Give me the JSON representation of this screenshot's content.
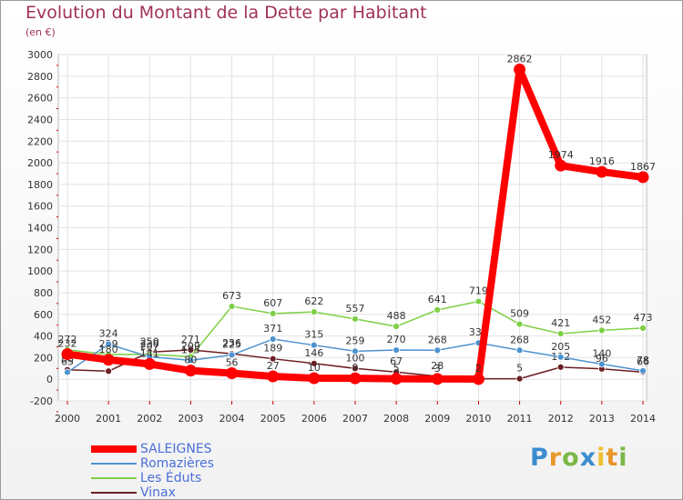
{
  "chart_data": {
    "type": "line",
    "title": "Evolution du Montant de la Dette par Habitant",
    "subtitle": "(en €)",
    "x": [
      "2000",
      "2001",
      "2002",
      "2003",
      "2004",
      "2005",
      "2006",
      "2007",
      "2008",
      "2009",
      "2010",
      "2011",
      "2012",
      "2013",
      "2014"
    ],
    "ylim": [
      -200,
      3000
    ],
    "yticks": [
      -200,
      0,
      200,
      400,
      600,
      800,
      1000,
      1200,
      1400,
      1600,
      1800,
      2000,
      2200,
      2400,
      2600,
      2800,
      3000
    ],
    "grid": true,
    "series": [
      {
        "name": "SALEIGNES",
        "color": "#ff0000",
        "values": [
          232,
          180,
          141,
          80,
          56,
          27,
          10,
          9,
          5,
          3,
          2,
          2862,
          1974,
          1916,
          1867
        ]
      },
      {
        "name": "Romazières",
        "color": "#4f93d0",
        "values": [
          65,
          324,
          207,
          175,
          225,
          371,
          315,
          259,
          270,
          268,
          336,
          268,
          205,
          140,
          78
        ]
      },
      {
        "name": "Les Éduts",
        "color": "#7ecf45",
        "values": [
          272,
          229,
          230,
          209,
          673,
          607,
          622,
          557,
          488,
          641,
          719,
          509,
          421,
          452,
          473
        ]
      },
      {
        "name": "Vinax",
        "color": "#6b1e22",
        "values": [
          88,
          75,
          250,
          271,
          236,
          189,
          146,
          100,
          67,
          28,
          5,
          5,
          112,
          96,
          66
        ]
      }
    ]
  },
  "logo": {
    "letters": [
      "P",
      "r",
      "o",
      "x",
      "i",
      "t",
      "i"
    ],
    "colors": [
      "#3c8ccf",
      "#e8962a",
      "#7ab846",
      "#3c8ccf",
      "#f0c030",
      "#e8962a",
      "#7ab846"
    ]
  }
}
